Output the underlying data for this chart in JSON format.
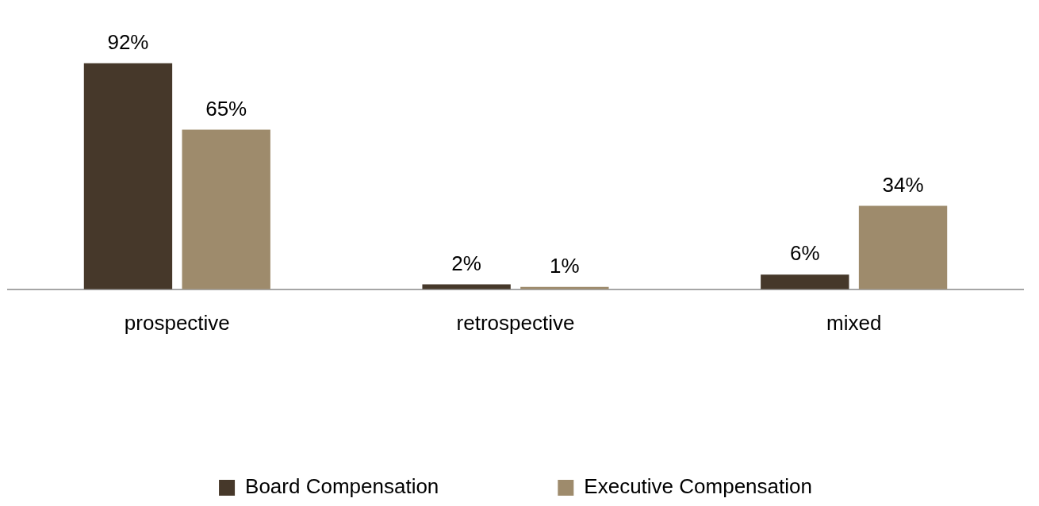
{
  "chart_data": {
    "type": "bar",
    "categories": [
      "prospective",
      "retrospective",
      "mixed"
    ],
    "series": [
      {
        "name": "Board Compensation",
        "color": "#46382a",
        "values": [
          92,
          2,
          6
        ],
        "value_labels": [
          "92%",
          "2%",
          "6%"
        ]
      },
      {
        "name": "Executive Compensation",
        "color": "#9e8b6c",
        "values": [
          65,
          1,
          34
        ],
        "value_labels": [
          "65%",
          "1%",
          "34%"
        ]
      }
    ],
    "grid": false,
    "legend": "bottom",
    "tick_labels": "x"
  }
}
